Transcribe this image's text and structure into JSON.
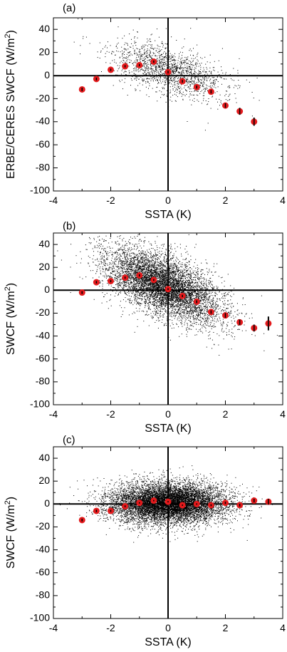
{
  "chart_data": [
    {
      "type": "scatter",
      "panel_label": "(a)",
      "xlabel": "SSTA (K)",
      "ylabel_main": "ERBE/CERES SWCF (W/m",
      "ylabel_sup": "2",
      "ylabel_close": ")",
      "xlim": [
        -4,
        4
      ],
      "ylim": [
        -100,
        50
      ],
      "xticks": [
        -4,
        -2,
        0,
        2,
        4
      ],
      "yticks": [
        -100,
        -80,
        -60,
        -40,
        -20,
        0,
        20,
        40
      ],
      "xtick_labels": [
        "-4",
        "-2",
        "0",
        "2",
        "4"
      ],
      "ytick_labels": [
        "-100",
        "-80",
        "-60",
        "-40",
        "-20",
        "0",
        "20",
        "40"
      ],
      "cloud": {
        "count": 1600,
        "center": [
          0.0,
          5
        ],
        "sx": 1.0,
        "sy": 13,
        "slope": -6
      },
      "binned_means": {
        "x": [
          -3,
          -2.5,
          -2,
          -1.5,
          -1,
          -0.5,
          0,
          0.5,
          1,
          1.5,
          2,
          2.5,
          3
        ],
        "y": [
          -12,
          -3,
          5,
          8,
          9,
          12,
          3,
          -5,
          -10,
          -14,
          -26,
          -31,
          -40
        ],
        "err": [
          1.5,
          1.2,
          1.0,
          1.0,
          1.0,
          1.0,
          1.2,
          1.2,
          1.3,
          1.5,
          2.0,
          3.0,
          3.5
        ]
      },
      "colors": {
        "marker": "#e31a1c",
        "errorbar": "#000000",
        "points": "#000000"
      }
    },
    {
      "type": "scatter",
      "panel_label": "(b)",
      "xlabel": "SSTA (K)",
      "ylabel_main": "SWCF (W/m",
      "ylabel_sup": "2",
      "ylabel_close": ")",
      "xlim": [
        -4,
        4
      ],
      "ylim": [
        -100,
        50
      ],
      "xticks": [
        -4,
        -2,
        0,
        2,
        4
      ],
      "yticks": [
        -100,
        -80,
        -60,
        -40,
        -20,
        0,
        20,
        40
      ],
      "xtick_labels": [
        "-4",
        "-2",
        "0",
        "2",
        "4"
      ],
      "ytick_labels": [
        "-100",
        "-80",
        "-60",
        "-40",
        "-20",
        "0",
        "20",
        "40"
      ],
      "cloud": {
        "count": 6500,
        "center": [
          -0.2,
          3
        ],
        "sx": 1.0,
        "sy": 16,
        "slope": -9
      },
      "binned_means": {
        "x": [
          -3,
          -2.5,
          -2,
          -1.5,
          -1,
          -0.5,
          0,
          0.5,
          1,
          1.5,
          2,
          2.5,
          3,
          3.5
        ],
        "y": [
          -2,
          7,
          8,
          11,
          13,
          9,
          1,
          -5,
          -10,
          -19,
          -22,
          -28,
          -33,
          -29
        ],
        "err": [
          1.2,
          1.0,
          1.0,
          1.0,
          1.0,
          0.8,
          0.8,
          1.0,
          1.2,
          1.5,
          2.0,
          2.5,
          3.0,
          6.0
        ]
      },
      "colors": {
        "marker": "#e31a1c",
        "errorbar": "#000000",
        "points": "#000000"
      }
    },
    {
      "type": "scatter",
      "panel_label": "(c)",
      "xlabel": "SSTA (K)",
      "ylabel_main": "SWCF (W/m",
      "ylabel_sup": "2",
      "ylabel_close": ")",
      "xlim": [
        -4,
        4
      ],
      "ylim": [
        -100,
        50
      ],
      "xticks": [
        -4,
        -2,
        0,
        2,
        4
      ],
      "yticks": [
        -100,
        -80,
        -60,
        -40,
        -20,
        0,
        20,
        40
      ],
      "xtick_labels": [
        "-4",
        "-2",
        "0",
        "2",
        "4"
      ],
      "ytick_labels": [
        "-100",
        "-80",
        "-60",
        "-40",
        "-20",
        "0",
        "20",
        "40"
      ],
      "cloud": {
        "count": 9000,
        "center": [
          0.0,
          1
        ],
        "sx": 1.0,
        "sy": 11,
        "slope": 0
      },
      "binned_means": {
        "x": [
          -3,
          -2.5,
          -2,
          -1.5,
          -1,
          -0.5,
          0,
          0.5,
          1,
          1.5,
          2,
          2.5,
          3,
          3.5
        ],
        "y": [
          -14,
          -6,
          -6,
          -2,
          1,
          3,
          2,
          -1,
          0,
          -1,
          1,
          -1,
          3,
          2
        ],
        "err": [
          1.2,
          1.0,
          0.8,
          0.8,
          0.6,
          0.6,
          0.6,
          0.6,
          0.6,
          0.8,
          1.0,
          1.2,
          1.5,
          2.5
        ]
      },
      "colors": {
        "marker": "#e31a1c",
        "errorbar": "#000000",
        "points": "#000000"
      }
    }
  ]
}
